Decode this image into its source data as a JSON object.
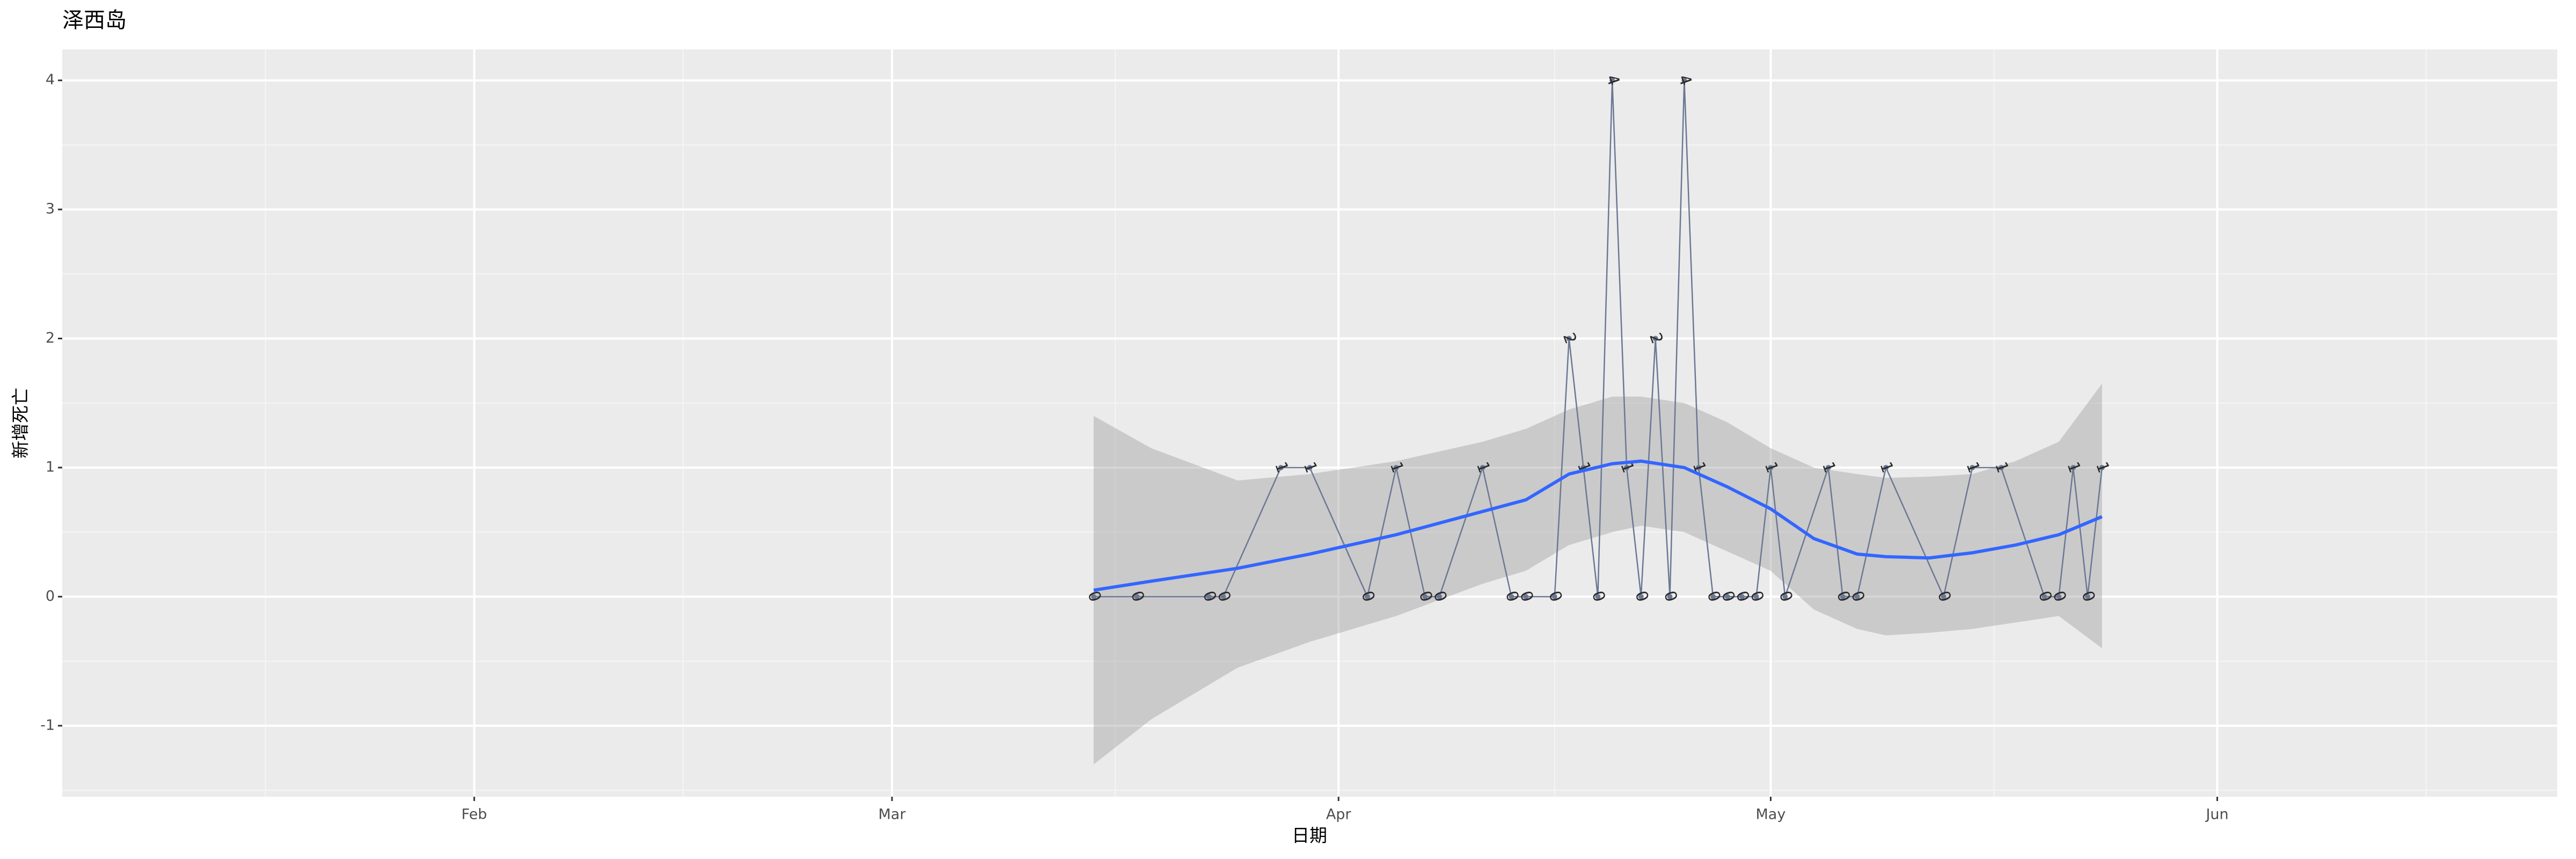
{
  "chart_data": {
    "type": "line",
    "title": "泽西岛",
    "x_label": "日期",
    "y_label": "新增死亡",
    "xlim": [
      3.4,
      176.6
    ],
    "xticks": [
      {
        "value": 32,
        "label": "Feb"
      },
      {
        "value": 61,
        "label": "Mar"
      },
      {
        "value": 92,
        "label": "Apr"
      },
      {
        "value": 122,
        "label": "May"
      },
      {
        "value": 153,
        "label": "Jun"
      }
    ],
    "ylim": [
      -1.55,
      4.24
    ],
    "yticks": [
      -1,
      0,
      1,
      2,
      3,
      4
    ],
    "grid": true,
    "series": [
      {
        "color": "#6b7894",
        "x": [
          75,
          78,
          83,
          84,
          88,
          90,
          94,
          96,
          98,
          99,
          102,
          104,
          105,
          107,
          108,
          109,
          110,
          111,
          112,
          113,
          114,
          115,
          116,
          117,
          118,
          119,
          120,
          121,
          122,
          123,
          126,
          127,
          128,
          130,
          134,
          136,
          138,
          141,
          142,
          143,
          144,
          145
        ],
        "values": [
          0,
          0,
          0,
          0,
          1,
          1,
          0,
          1,
          0,
          0,
          1,
          0,
          0,
          0,
          2,
          1,
          0,
          4,
          1,
          0,
          2,
          0,
          4,
          1,
          0,
          0,
          0,
          0,
          1,
          0,
          1,
          0,
          0,
          1,
          0,
          1,
          1,
          0,
          0,
          1,
          0,
          1
        ]
      },
      {
        "color": "#3366ff",
        "x": [
          75,
          79,
          85,
          90,
          96,
          102,
          105,
          108,
          111,
          113,
          116,
          119,
          122,
          125,
          128,
          130,
          133,
          136,
          139,
          142,
          145
        ],
        "values": [
          0.05,
          0.12,
          0.22,
          0.33,
          0.48,
          0.66,
          0.75,
          0.95,
          1.03,
          1.05,
          1.0,
          0.85,
          0.68,
          0.45,
          0.33,
          0.31,
          0.3,
          0.34,
          0.4,
          0.48,
          0.62
        ]
      }
    ],
    "band": {
      "color": "#999999",
      "x": [
        75,
        79,
        85,
        90,
        96,
        102,
        105,
        108,
        111,
        113,
        116,
        119,
        122,
        125,
        128,
        130,
        133,
        136,
        139,
        142,
        145
      ],
      "upper": [
        1.4,
        1.15,
        0.9,
        0.95,
        1.05,
        1.2,
        1.3,
        1.45,
        1.55,
        1.55,
        1.5,
        1.35,
        1.15,
        1.0,
        0.95,
        0.92,
        0.93,
        0.95,
        1.05,
        1.2,
        1.65
      ],
      "lower": [
        -1.3,
        -0.95,
        -0.55,
        -0.35,
        -0.15,
        0.1,
        0.2,
        0.4,
        0.5,
        0.55,
        0.5,
        0.35,
        0.2,
        -0.1,
        -0.25,
        -0.3,
        -0.28,
        -0.25,
        -0.2,
        -0.15,
        -0.4
      ]
    }
  }
}
